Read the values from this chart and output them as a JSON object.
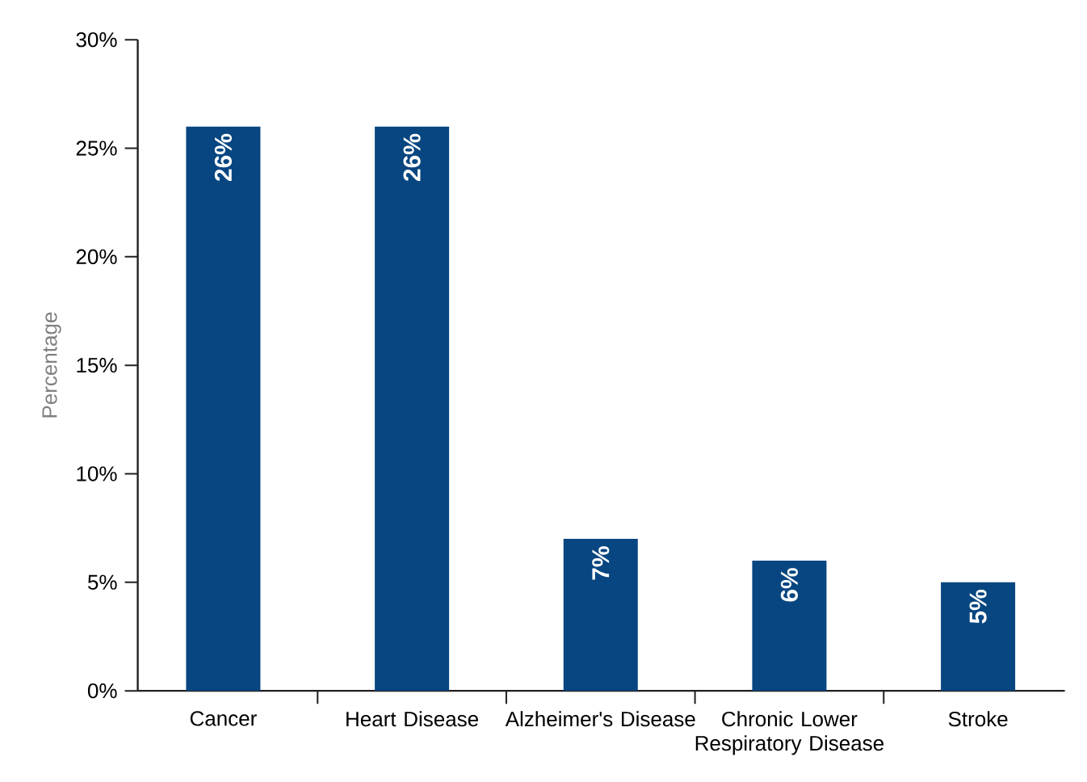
{
  "chart_data": {
    "type": "bar",
    "ylabel": "Percentage",
    "categories": [
      "Cancer",
      "Heart Disease",
      "Alzheimer's Disease",
      "Chronic Lower Respiratory Disease",
      "Stroke"
    ],
    "values": [
      26,
      26,
      7,
      6,
      5
    ],
    "value_labels": [
      "26%",
      "26%",
      "7%",
      "6%",
      "5%"
    ],
    "color": "#074680",
    "ylim": [
      0,
      30
    ],
    "yticks": [
      {
        "value": 0,
        "label": "0%"
      },
      {
        "value": 5,
        "label": "5%"
      },
      {
        "value": 10,
        "label": "10%"
      },
      {
        "value": 15,
        "label": "15%"
      },
      {
        "value": 20,
        "label": "20%"
      },
      {
        "value": 25,
        "label": "25%"
      },
      {
        "value": 30,
        "label": "30%"
      }
    ],
    "grid": false
  }
}
